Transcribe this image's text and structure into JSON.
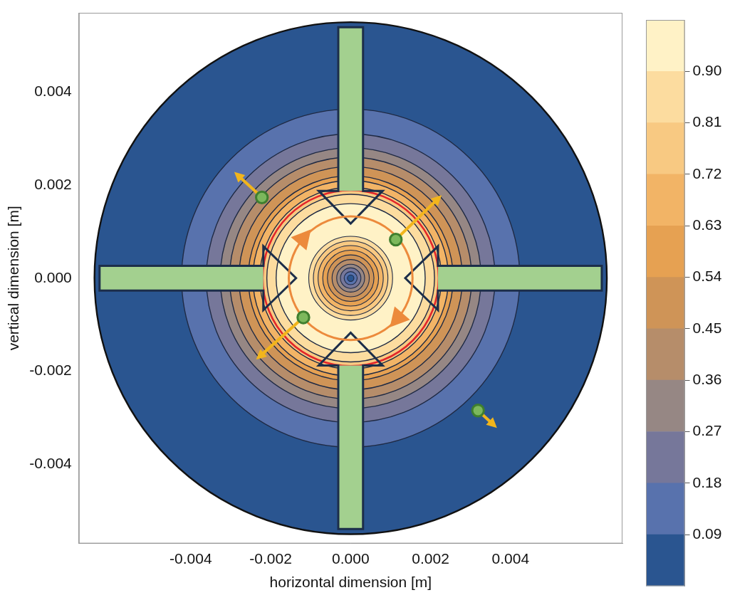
{
  "chart_data": {
    "type": "contour",
    "xlabel": "horizontal dimension [m]",
    "ylabel": "vertical dimension [m]",
    "xlim": [
      -0.0068,
      0.0068
    ],
    "ylim": [
      -0.0057,
      0.0057
    ],
    "xticks": [
      -0.004,
      -0.002,
      {
        "value": 0,
        "label": "0.000"
      },
      0.002,
      0.004
    ],
    "yticks": [
      -0.004,
      -0.002,
      {
        "value": 0,
        "label": "0.000"
      },
      0.002,
      0.004
    ],
    "grid": false,
    "center": [
      0,
      0
    ],
    "domain_radius": 0.0055,
    "contour_levels": [
      0.09,
      0.18,
      0.27,
      0.36,
      0.45,
      0.54,
      0.63,
      0.72,
      0.81,
      0.9
    ],
    "outer_radii": [
      0.00363,
      0.0031,
      0.0028,
      0.0026,
      0.0024,
      0.0022,
      0.0021,
      0.00195,
      0.0018,
      0.0016
    ],
    "inner_radii": [
      7e-05,
      0.00014,
      0.00022,
      0.0003,
      0.0004,
      0.0005,
      0.0006,
      0.0007,
      0.0008,
      0.0009
    ],
    "red_contour": {
      "radius": 0.00189,
      "color": "#e3262a"
    },
    "colorbar": {
      "range": [
        0,
        0.99
      ],
      "ticks": [
        0.09,
        0.18,
        0.27,
        0.36,
        0.45,
        0.54,
        0.63,
        0.72,
        0.81,
        {
          "value": 0.9,
          "label": "0.90"
        }
      ],
      "bounds": [
        0,
        0.09,
        0.18,
        0.27,
        0.36,
        0.45,
        0.54,
        0.63,
        0.72,
        0.81,
        0.9,
        0.99
      ],
      "colors": [
        "#2a5590",
        "#5872ad",
        "#76779a",
        "#968784",
        "#b68d6a",
        "#cf9457",
        "#e6a152",
        "#f2b466",
        "#f8c982",
        "#fcdc9f",
        "#fff2c6"
      ]
    }
  }
}
